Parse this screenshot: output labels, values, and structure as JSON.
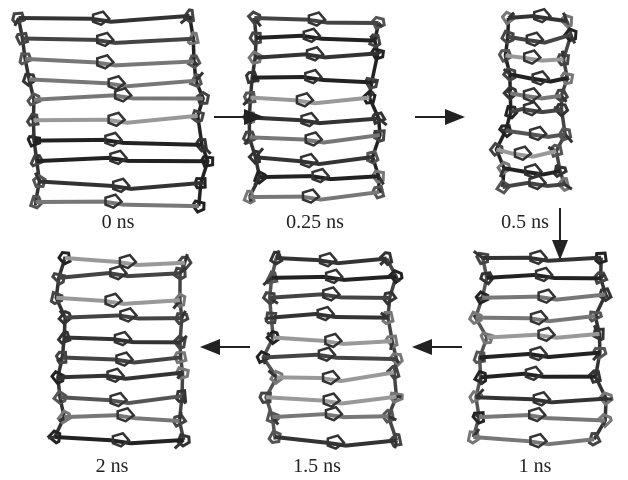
{
  "panels": [
    {
      "label": "0 ns"
    },
    {
      "label": "0.25 ns"
    },
    {
      "label": "0.5 ns"
    },
    {
      "label": "1 ns"
    },
    {
      "label": "1.5 ns"
    },
    {
      "label": "2 ns"
    }
  ]
}
